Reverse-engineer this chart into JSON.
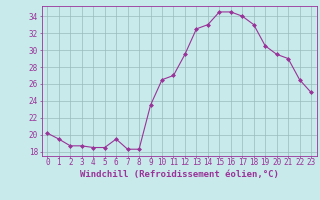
{
  "x": [
    0,
    1,
    2,
    3,
    4,
    5,
    6,
    7,
    8,
    9,
    10,
    11,
    12,
    13,
    14,
    15,
    16,
    17,
    18,
    19,
    20,
    21,
    22,
    23
  ],
  "y": [
    20.2,
    19.5,
    18.7,
    18.7,
    18.5,
    18.5,
    19.5,
    18.3,
    18.3,
    23.5,
    26.5,
    27.0,
    29.5,
    32.5,
    33.0,
    34.5,
    34.5,
    34.0,
    33.0,
    30.5,
    29.5,
    29.0,
    26.5,
    25.0
  ],
  "line_color": "#993399",
  "marker": "D",
  "marker_size": 2.0,
  "bg_color": "#c8eaea",
  "grid_color": "#9bbcbc",
  "xlabel": "Windchill (Refroidissement éolien,°C)",
  "ylim": [
    17.5,
    35.2
  ],
  "xlim": [
    -0.5,
    23.5
  ],
  "yticks": [
    18,
    20,
    22,
    24,
    26,
    28,
    30,
    32,
    34
  ],
  "xticks": [
    0,
    1,
    2,
    3,
    4,
    5,
    6,
    7,
    8,
    9,
    10,
    11,
    12,
    13,
    14,
    15,
    16,
    17,
    18,
    19,
    20,
    21,
    22,
    23
  ],
  "tick_fontsize": 5.5,
  "xlabel_fontsize": 6.5
}
